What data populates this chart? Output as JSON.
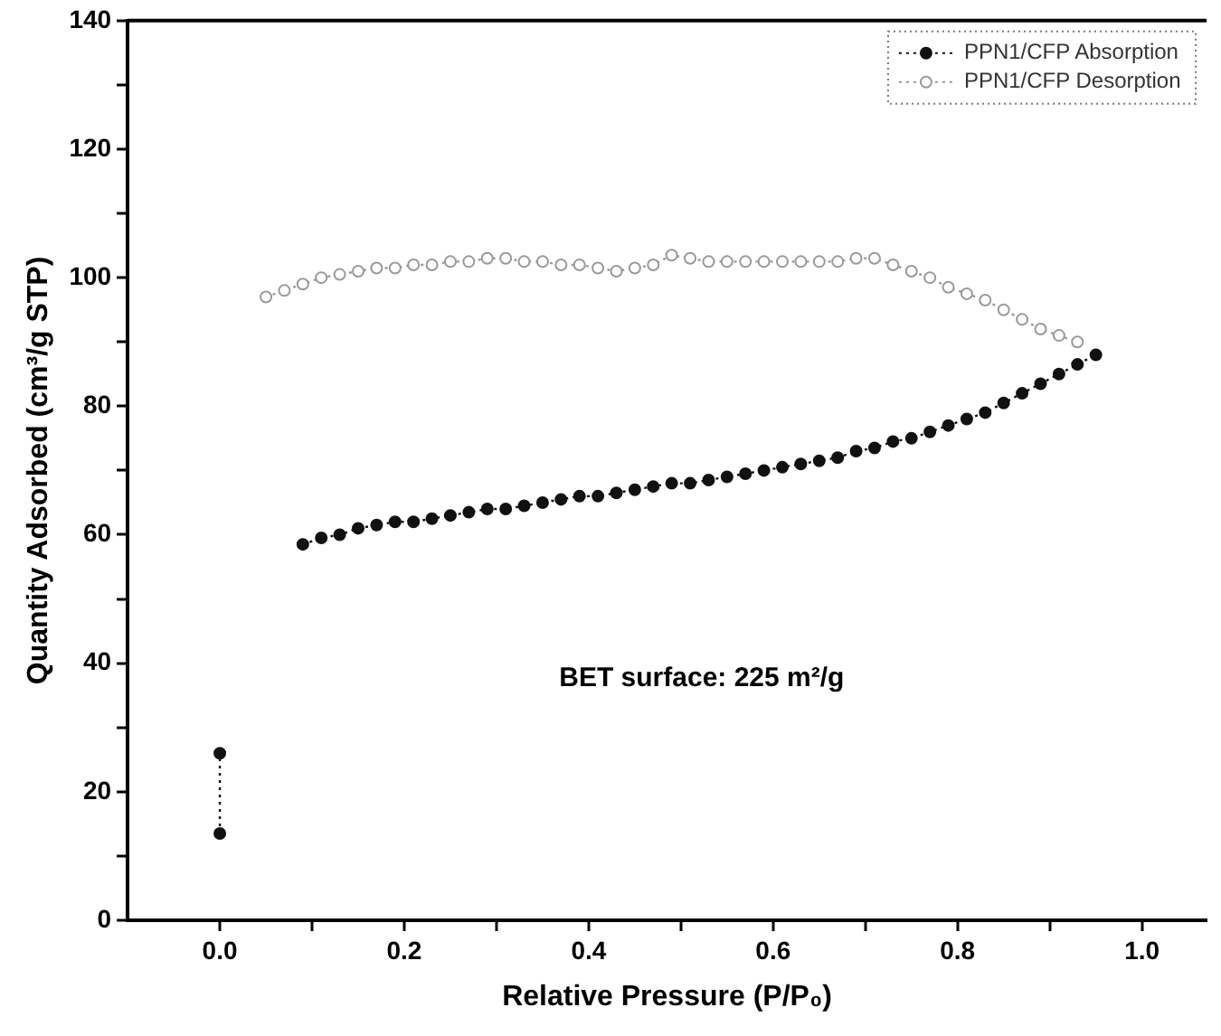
{
  "chart_data": {
    "type": "line",
    "xlabel": "Relative Pressure (P/P₀)",
    "ylabel": "Quantity Adsorbed (cm³/g STP)",
    "xlim": [
      -0.1,
      1.07
    ],
    "ylim": [
      0,
      140
    ],
    "xticks": [
      {
        "value": 0,
        "label": "0.0"
      },
      {
        "value": 0.1,
        "label": null
      },
      {
        "value": 0.2,
        "label": "0.2"
      },
      {
        "value": 0.3,
        "label": null
      },
      {
        "value": 0.4,
        "label": "0.4"
      },
      {
        "value": 0.5,
        "label": null
      },
      {
        "value": 0.6,
        "label": "0.6"
      },
      {
        "value": 0.7,
        "label": null
      },
      {
        "value": 0.8,
        "label": "0.8"
      },
      {
        "value": 0.9,
        "label": null
      },
      {
        "value": 1,
        "label": "1.0"
      }
    ],
    "yticks": [
      0,
      {
        "value": 10,
        "label": null
      },
      20,
      {
        "value": 30,
        "label": null
      },
      40,
      {
        "value": 50,
        "label": null
      },
      60,
      {
        "value": 70,
        "label": null
      },
      80,
      {
        "value": 90,
        "label": null
      },
      100,
      {
        "value": 110,
        "label": null
      },
      120,
      {
        "value": 130,
        "label": null
      },
      140
    ],
    "legend": "top right",
    "line_style": "dotted",
    "marker": "circle",
    "annotations": [
      "BET surface: 225 m²/g"
    ],
    "series": [
      {
        "name": "PPN1/CFP Absorption",
        "color": "#111111",
        "x": [
          0,
          0,
          0.05,
          0.09,
          0.11,
          0.13,
          0.15,
          0.17,
          0.19,
          0.21,
          0.23,
          0.25,
          0.27,
          0.29,
          0.31,
          0.33,
          0.35,
          0.37,
          0.39,
          0.41,
          0.43,
          0.45,
          0.47,
          0.49,
          0.51,
          0.53,
          0.55,
          0.57,
          0.59,
          0.61,
          0.63,
          0.65,
          0.67,
          0.69,
          0.71,
          0.73,
          0.75,
          0.77,
          0.79,
          0.81,
          0.83,
          0.85,
          0.87,
          0.89,
          0.91,
          0.93,
          0.95
        ],
        "values": [
          13.5,
          26,
          null,
          58.5,
          59.5,
          60,
          61,
          61.5,
          62,
          62,
          62.5,
          63,
          63.5,
          64,
          64,
          64.5,
          65,
          65.5,
          66,
          66,
          66.5,
          67,
          67.5,
          68,
          68,
          68.5,
          69,
          69.5,
          70,
          70.5,
          71,
          71.5,
          72,
          73,
          73.5,
          74.5,
          75,
          76,
          77,
          78,
          79,
          80.5,
          82,
          83.5,
          85,
          86.5,
          88
        ]
      },
      {
        "name": "PPN1/CFP Desorption",
        "color": "#999999",
        "x": [
          0.05,
          0.07,
          0.09,
          0.11,
          0.13,
          0.15,
          0.17,
          0.19,
          0.21,
          0.23,
          0.25,
          0.27,
          0.29,
          0.31,
          0.33,
          0.35,
          0.37,
          0.39,
          0.41,
          0.43,
          0.45,
          0.47,
          0.49,
          0.51,
          0.53,
          0.55,
          0.57,
          0.59,
          0.61,
          0.63,
          0.65,
          0.67,
          0.69,
          0.71,
          0.73,
          0.75,
          0.77,
          0.79,
          0.81,
          0.83,
          0.85,
          0.87,
          0.89,
          0.91,
          0.93
        ],
        "values": [
          97,
          98,
          99,
          100,
          100.5,
          101,
          101.5,
          101.5,
          102,
          102,
          102.5,
          102.5,
          103,
          103,
          102.5,
          102.5,
          102,
          102,
          101.5,
          101,
          101.5,
          102,
          103.5,
          103,
          102.5,
          102.5,
          102.5,
          102.5,
          102.5,
          102.5,
          102.5,
          102.5,
          103,
          103,
          102,
          101,
          100,
          98.5,
          97.5,
          96.5,
          95,
          93.5,
          92,
          91,
          90
        ]
      }
    ]
  }
}
